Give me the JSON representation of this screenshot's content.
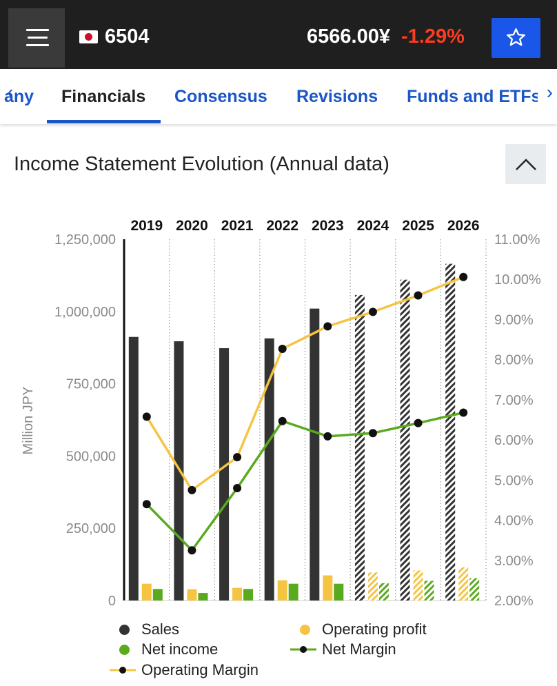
{
  "header": {
    "ticker": "6504",
    "price": "6566.00¥",
    "change": "-1.29%",
    "change_color": "#ff3b1f",
    "menu_icon": "hamburger-icon",
    "flag_icon": "japan-flag-icon",
    "watchlist_icon": "star-icon"
  },
  "tabs": [
    {
      "label": "any"
    },
    {
      "label": "Financials",
      "active": true
    },
    {
      "label": "Consensus"
    },
    {
      "label": "Revisions"
    },
    {
      "label": "Funds and ETFs"
    }
  ],
  "section": {
    "title": "Income Statement Evolution (Annual data)",
    "collapse_icon": "chevron-up-icon"
  },
  "chart_data": {
    "type": "bar",
    "categories": [
      "2019",
      "2020",
      "2021",
      "2022",
      "2023",
      "2024",
      "2025",
      "2026"
    ],
    "estimate_from_index": 5,
    "ylabel": "Million JPY",
    "ylim": [
      0,
      1250000
    ],
    "y_ticks": [
      "0",
      "250,000",
      "500,000",
      "750,000",
      "1,000,000",
      "1,250,000"
    ],
    "y2lim": [
      2.0,
      11.0
    ],
    "y2_ticks": [
      "2.00%",
      "3.00%",
      "4.00%",
      "5.00%",
      "6.00%",
      "7.00%",
      "8.00%",
      "9.00%",
      "10.00%",
      "11.00%"
    ],
    "series": [
      {
        "name": "Sales",
        "type": "bar",
        "axis": "left",
        "color": "#333333",
        "values": [
          912000,
          897000,
          873000,
          907000,
          1010000,
          1057000,
          1110000,
          1165000
        ]
      },
      {
        "name": "Operating profit",
        "type": "bar",
        "axis": "left",
        "color": "#f5c542",
        "values": [
          58000,
          39000,
          44000,
          70000,
          87000,
          97000,
          104000,
          115000
        ]
      },
      {
        "name": "Net income",
        "type": "bar",
        "axis": "left",
        "color": "#5aaa1e",
        "values": [
          40000,
          26000,
          40000,
          58000,
          58000,
          60000,
          68000,
          77000
        ]
      },
      {
        "name": "Net Margin",
        "type": "line",
        "axis": "right",
        "color": "#5aaa1e",
        "values": [
          4.4,
          3.25,
          4.8,
          6.47,
          6.09,
          6.17,
          6.42,
          6.68
        ]
      },
      {
        "name": "Operating Margin",
        "type": "line",
        "axis": "right",
        "color": "#f5c542",
        "values": [
          6.58,
          4.75,
          5.57,
          8.27,
          8.83,
          9.19,
          9.6,
          10.06
        ]
      }
    ],
    "legend_position": "bottom"
  }
}
